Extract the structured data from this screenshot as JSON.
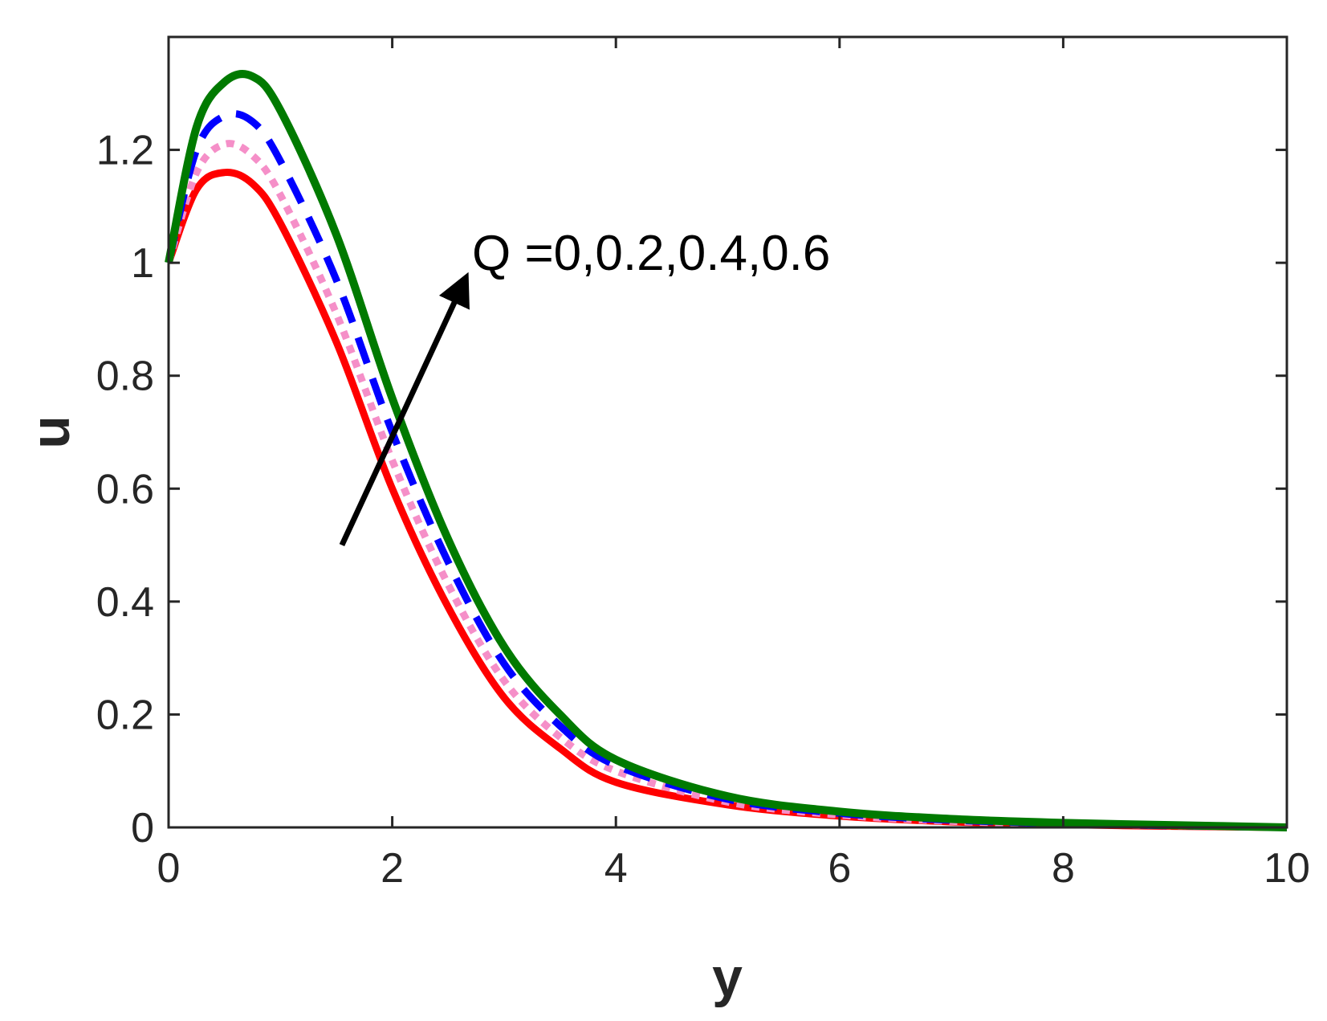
{
  "chart_data": {
    "type": "line",
    "xlabel": "y",
    "ylabel": "u",
    "xlim": [
      0,
      10
    ],
    "ylim": [
      0,
      1.4
    ],
    "x_ticks": [
      "0",
      "2",
      "4",
      "6",
      "8",
      "10"
    ],
    "y_ticks": [
      "0",
      "0.2",
      "0.4",
      "0.6",
      "0.8",
      "1",
      "1.2"
    ],
    "grid": false,
    "legend": "none",
    "annotation": "Q =0,0.2,0.4,0.6",
    "arrow": {
      "from": [
        1.55,
        0.5
      ],
      "to": [
        2.65,
        0.97
      ]
    },
    "x": [
      0,
      0.25,
      0.5,
      0.75,
      1,
      1.5,
      2,
      2.5,
      3,
      3.5,
      4,
      5,
      6,
      7,
      8,
      9,
      10
    ],
    "series": [
      {
        "color": "#ff0000",
        "dash": "solid",
        "values": [
          1.0,
          1.13,
          1.16,
          1.14,
          1.07,
          0.86,
          0.6,
          0.39,
          0.23,
          0.14,
          0.08,
          0.04,
          0.02,
          0.01,
          0.005,
          0.002,
          0.0
        ]
      },
      {
        "color": "#f58fc8",
        "dash": "dotted",
        "values": [
          1.0,
          1.16,
          1.21,
          1.19,
          1.12,
          0.91,
          0.65,
          0.43,
          0.26,
          0.16,
          0.1,
          0.045,
          0.022,
          0.011,
          0.006,
          0.003,
          0.0
        ]
      },
      {
        "color": "#0000ff",
        "dash": "dashed",
        "values": [
          1.0,
          1.2,
          1.26,
          1.25,
          1.18,
          0.97,
          0.7,
          0.47,
          0.29,
          0.18,
          0.11,
          0.05,
          0.025,
          0.013,
          0.007,
          0.003,
          0.0
        ]
      },
      {
        "color": "#007a00",
        "dash": "solid",
        "values": [
          1.0,
          1.24,
          1.32,
          1.33,
          1.27,
          1.05,
          0.76,
          0.51,
          0.32,
          0.2,
          0.12,
          0.055,
          0.028,
          0.015,
          0.008,
          0.004,
          0.0
        ]
      }
    ]
  }
}
